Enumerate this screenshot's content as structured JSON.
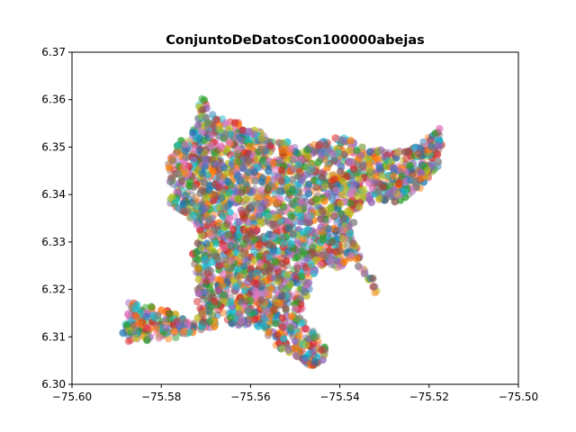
{
  "chart_data": {
    "type": "scatter",
    "title": "ConjuntoDeDatosCon100000abejas",
    "xlabel": "",
    "ylabel": "",
    "xlim": [
      -75.6,
      -75.5
    ],
    "ylim": [
      6.3,
      6.37
    ],
    "x_ticks": [
      "−75.60",
      "−75.58",
      "−75.56",
      "−75.54",
      "−75.52",
      "−75.50"
    ],
    "x_tick_values": [
      -75.6,
      -75.58,
      -75.56,
      -75.54,
      -75.52,
      -75.5
    ],
    "y_ticks": [
      "6.30",
      "6.31",
      "6.32",
      "6.33",
      "6.34",
      "6.35",
      "6.36",
      "6.37"
    ],
    "y_tick_values": [
      6.3,
      6.31,
      6.32,
      6.33,
      6.34,
      6.35,
      6.36,
      6.37
    ],
    "grid": false,
    "legend": "none",
    "point_count_label": "100000",
    "marker_opacity": 0.5,
    "palette": [
      "#1f77b4",
      "#ff7f0e",
      "#2ca02c",
      "#d62728",
      "#9467bd",
      "#8c564b",
      "#e377c2",
      "#7f7f7f",
      "#bcbd22",
      "#17becf"
    ],
    "region_outline": [
      [
        -75.59,
        6.3178
      ],
      [
        -75.585,
        6.317
      ],
      [
        -75.58,
        6.316
      ],
      [
        -75.576,
        6.3145
      ],
      [
        -75.572,
        6.313
      ],
      [
        -75.572,
        6.3175
      ],
      [
        -75.572,
        6.3225
      ],
      [
        -75.573,
        6.3275
      ],
      [
        -75.571,
        6.332
      ],
      [
        -75.5745,
        6.336
      ],
      [
        -75.578,
        6.338
      ],
      [
        -75.5785,
        6.342
      ],
      [
        -75.5785,
        6.347
      ],
      [
        -75.575,
        6.3525
      ],
      [
        -75.572,
        6.3545
      ],
      [
        -75.572,
        6.36
      ],
      [
        -75.5705,
        6.3612
      ],
      [
        -75.569,
        6.357
      ],
      [
        -75.566,
        6.356
      ],
      [
        -75.562,
        6.355
      ],
      [
        -75.558,
        6.3535
      ],
      [
        -75.555,
        6.351
      ],
      [
        -75.552,
        6.3515
      ],
      [
        -75.5485,
        6.3495
      ],
      [
        -75.5445,
        6.351
      ],
      [
        -75.541,
        6.3525
      ],
      [
        -75.538,
        6.352
      ],
      [
        -75.534,
        6.3495
      ],
      [
        -75.53,
        6.3495
      ],
      [
        -75.525,
        6.349
      ],
      [
        -75.521,
        6.3515
      ],
      [
        -75.5175,
        6.3545
      ],
      [
        -75.517,
        6.35
      ],
      [
        -75.518,
        6.346
      ],
      [
        -75.521,
        6.342
      ],
      [
        -75.525,
        6.339
      ],
      [
        -75.53,
        6.338
      ],
      [
        -75.535,
        6.3385
      ],
      [
        -75.5365,
        6.335
      ],
      [
        -75.5375,
        6.332
      ],
      [
        -75.5355,
        6.327
      ],
      [
        -75.5325,
        6.3225
      ],
      [
        -75.531,
        6.3185
      ],
      [
        -75.5305,
        6.3165
      ],
      [
        -75.534,
        6.3225
      ],
      [
        -75.537,
        6.3255
      ],
      [
        -75.54,
        6.3242
      ],
      [
        -75.5435,
        6.3248
      ],
      [
        -75.5465,
        6.3225
      ],
      [
        -75.547,
        6.319
      ],
      [
        -75.549,
        6.3145
      ],
      [
        -75.5455,
        6.311
      ],
      [
        -75.543,
        6.3085
      ],
      [
        -75.5435,
        6.305
      ],
      [
        -75.5465,
        6.3038
      ],
      [
        -75.55,
        6.3058
      ],
      [
        -75.5545,
        6.3082
      ],
      [
        -75.5575,
        6.3118
      ],
      [
        -75.562,
        6.312
      ],
      [
        -75.566,
        6.313
      ],
      [
        -75.569,
        6.3115
      ],
      [
        -75.574,
        6.3105
      ],
      [
        -75.578,
        6.3095
      ],
      [
        -75.583,
        6.3092
      ],
      [
        -75.588,
        6.309
      ],
      [
        -75.5895,
        6.313
      ],
      [
        -75.5865,
        6.316
      ]
    ]
  }
}
